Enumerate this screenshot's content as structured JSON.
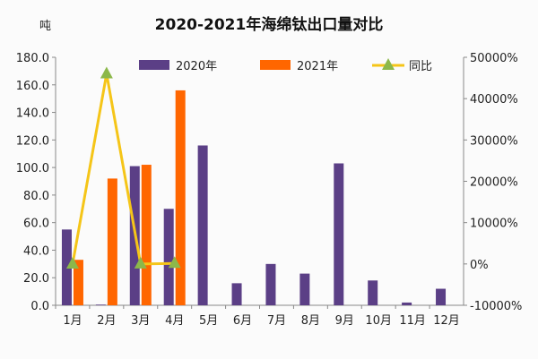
{
  "chart_data": {
    "type": "bar",
    "title": "2020-2021年海绵钛出口量对比",
    "ylabel": "吨",
    "categories": [
      "1月",
      "2月",
      "3月",
      "4月",
      "5月",
      "6月",
      "7月",
      "8月",
      "9月",
      "10月",
      "11月",
      "12月"
    ],
    "series": [
      {
        "name": "2020年",
        "type": "bar",
        "axis": "left",
        "color": "#5b3f86",
        "values": [
          55,
          0.5,
          101,
          70,
          116,
          16,
          30,
          23,
          103,
          18,
          2,
          12
        ]
      },
      {
        "name": "2021年",
        "type": "bar",
        "axis": "left",
        "color": "#ff6600",
        "values": [
          33,
          92,
          102,
          156,
          null,
          null,
          null,
          null,
          null,
          null,
          null,
          null
        ]
      },
      {
        "name": "同比",
        "type": "line",
        "axis": "right",
        "color": "#f5c518",
        "marker_color": "#8cb84a",
        "values": [
          -40,
          46000,
          1,
          123,
          null,
          null,
          null,
          null,
          null,
          null,
          null,
          null
        ]
      }
    ],
    "ylim": [
      0,
      180
    ],
    "yticks": [
      "0.0",
      "20.0",
      "40.0",
      "60.0",
      "80.0",
      "100.0",
      "120.0",
      "140.0",
      "160.0",
      "180.0"
    ],
    "y2lim": [
      -10000,
      50000
    ],
    "y2ticks": [
      "-10000%",
      "0%",
      "10000%",
      "20000%",
      "30000%",
      "40000%",
      "50000%"
    ],
    "legend": "top",
    "grid": false
  }
}
